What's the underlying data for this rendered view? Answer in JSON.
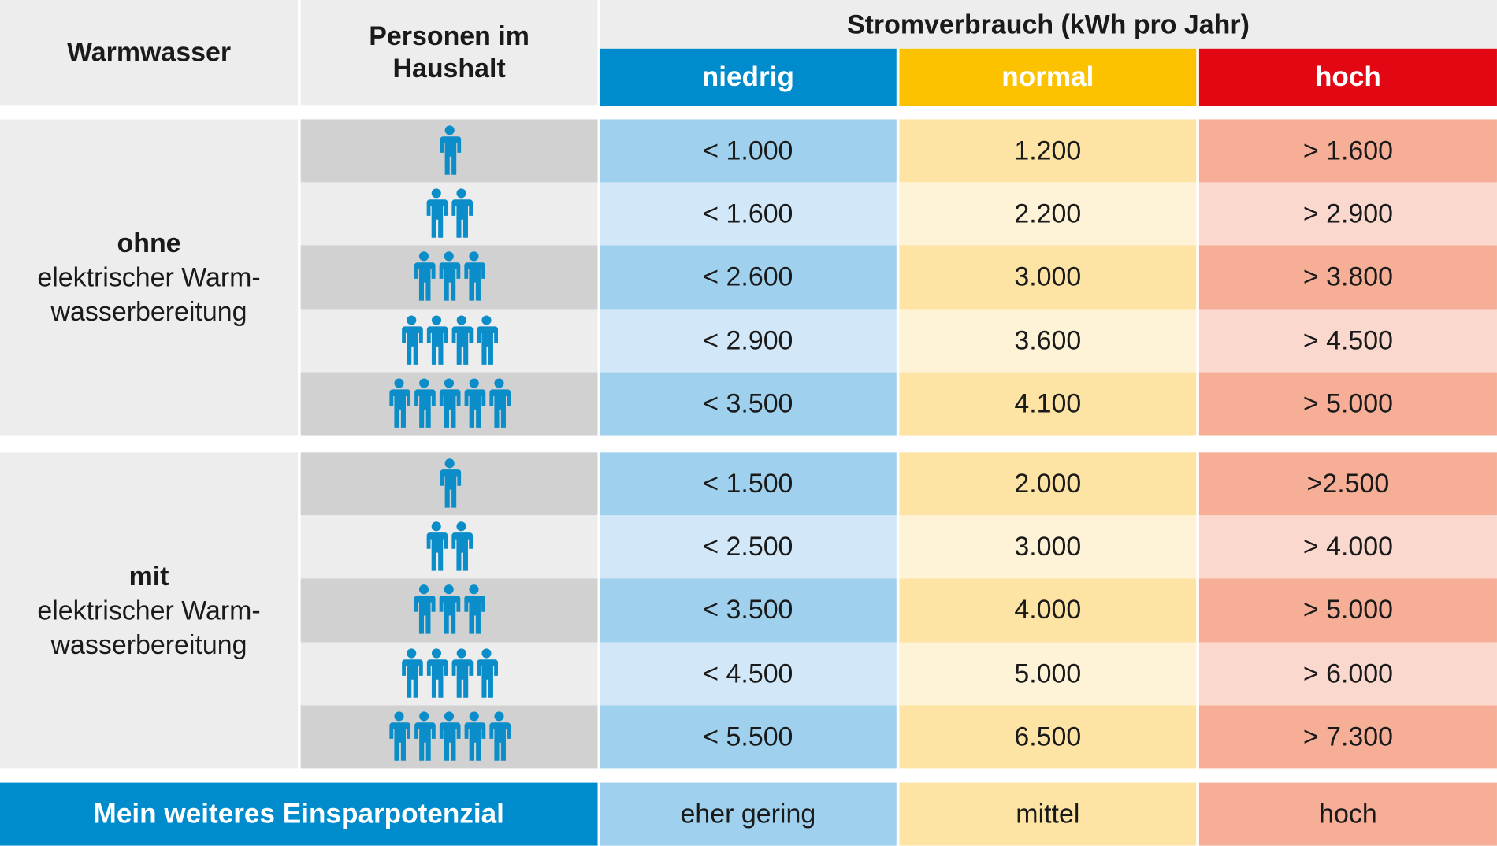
{
  "header": {
    "col1": "Warmwasser",
    "col2_line1": "Personen im",
    "col2_line2": "Haushalt",
    "main": "Stromverbrauch (kWh pro Jahr)",
    "categories": [
      {
        "label": "niedrig",
        "color": "#008ccc"
      },
      {
        "label": "normal",
        "color": "#fcc200"
      },
      {
        "label": "hoch",
        "color": "#e30613"
      }
    ]
  },
  "colors": {
    "icon": "#0a8dc8",
    "gray_dark": "#d1d1d1",
    "gray_light": "#ededed",
    "low_dark": "#9fd1ef",
    "low_light": "#d2e8f8",
    "mid_dark": "#fde4a4",
    "mid_light": "#fef3d6",
    "high_dark": "#f6ae96",
    "high_light": "#fbd8ce",
    "footer": "#008ccc"
  },
  "chart_data": {
    "type": "table",
    "columns": [
      "Warmwasser",
      "Personen im Haushalt",
      "niedrig",
      "normal",
      "hoch"
    ],
    "groups": [
      {
        "title": "ohne",
        "subtitle_line1": "elektrischer Warm-",
        "subtitle_line2": "wasserbereitung",
        "rows": [
          {
            "persons": 1,
            "low": "< 1.000",
            "normal": "1.200",
            "high": "> 1.600"
          },
          {
            "persons": 2,
            "low": "< 1.600",
            "normal": "2.200",
            "high": "> 2.900"
          },
          {
            "persons": 3,
            "low": "< 2.600",
            "normal": "3.000",
            "high": "> 3.800"
          },
          {
            "persons": 4,
            "low": "< 2.900",
            "normal": "3.600",
            "high": "> 4.500"
          },
          {
            "persons": 5,
            "low": "< 3.500",
            "normal": "4.100",
            "high": "> 5.000"
          }
        ]
      },
      {
        "title": "mit",
        "subtitle_line1": "elektrischer Warm-",
        "subtitle_line2": "wasserbereitung",
        "rows": [
          {
            "persons": 1,
            "low": "< 1.500",
            "normal": "2.000",
            "high": ">2.500"
          },
          {
            "persons": 2,
            "low": "< 2.500",
            "normal": "3.000",
            "high": "> 4.000"
          },
          {
            "persons": 3,
            "low": "< 3.500",
            "normal": "4.000",
            "high": "> 5.000"
          },
          {
            "persons": 4,
            "low": "< 4.500",
            "normal": "5.000",
            "high": "> 6.000"
          },
          {
            "persons": 5,
            "low": "< 5.500",
            "normal": "6.500",
            "high": "> 7.300"
          }
        ]
      }
    ],
    "footer": {
      "label": "Mein weiteres Einsparpotenzial",
      "values": [
        "eher gering",
        "mittel",
        "hoch"
      ]
    }
  }
}
